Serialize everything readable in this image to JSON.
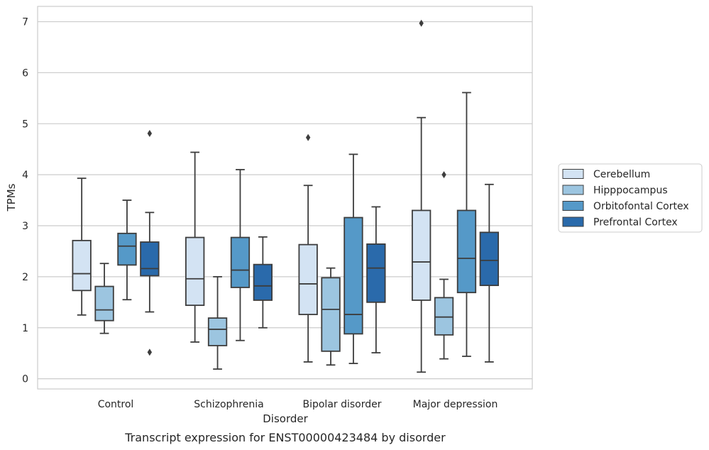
{
  "caption": "Transcript expression for ENST00000423484 by disorder",
  "chart_data": {
    "type": "box",
    "title": "",
    "xlabel": "Disorder",
    "ylabel": "TPMs",
    "ylim": [
      -0.2,
      7.3
    ],
    "yticks": [
      0,
      1,
      2,
      3,
      4,
      5,
      6,
      7
    ],
    "grid": "horizontal",
    "legend_position": "right",
    "categories": [
      "Control",
      "Schizophrenia",
      "Bipolar disorder",
      "Major depression"
    ],
    "series": [
      {
        "name": "Cerebellum",
        "color": "#d3e3f3",
        "boxes": [
          {
            "whislo": 1.25,
            "q1": 1.73,
            "med": 2.06,
            "q3": 2.71,
            "whishi": 3.93,
            "fliers": []
          },
          {
            "whislo": 0.72,
            "q1": 1.44,
            "med": 1.96,
            "q3": 2.77,
            "whishi": 4.44,
            "fliers": []
          },
          {
            "whislo": 0.33,
            "q1": 1.26,
            "med": 1.86,
            "q3": 2.63,
            "whishi": 3.79,
            "fliers": [
              4.73
            ]
          },
          {
            "whislo": 0.13,
            "q1": 1.54,
            "med": 2.29,
            "q3": 3.3,
            "whishi": 5.12,
            "fliers": [
              6.97
            ]
          }
        ]
      },
      {
        "name": "Hipppocampus",
        "color": "#9cc5e0",
        "boxes": [
          {
            "whislo": 0.89,
            "q1": 1.14,
            "med": 1.35,
            "q3": 1.81,
            "whishi": 2.26,
            "fliers": []
          },
          {
            "whislo": 0.19,
            "q1": 0.65,
            "med": 0.97,
            "q3": 1.19,
            "whishi": 2.0,
            "fliers": []
          },
          {
            "whislo": 0.27,
            "q1": 0.54,
            "med": 1.36,
            "q3": 1.98,
            "whishi": 2.17,
            "fliers": []
          },
          {
            "whislo": 0.39,
            "q1": 0.86,
            "med": 1.21,
            "q3": 1.59,
            "whishi": 1.95,
            "fliers": [
              4.0
            ]
          }
        ]
      },
      {
        "name": "Orbitofontal Cortex",
        "color": "#5599c8",
        "boxes": [
          {
            "whislo": 1.55,
            "q1": 2.23,
            "med": 2.6,
            "q3": 2.85,
            "whishi": 3.5,
            "fliers": []
          },
          {
            "whislo": 0.75,
            "q1": 1.79,
            "med": 2.13,
            "q3": 2.77,
            "whishi": 4.1,
            "fliers": []
          },
          {
            "whislo": 0.3,
            "q1": 0.88,
            "med": 1.26,
            "q3": 3.16,
            "whishi": 4.4,
            "fliers": []
          },
          {
            "whislo": 0.44,
            "q1": 1.69,
            "med": 2.36,
            "q3": 3.3,
            "whishi": 5.61,
            "fliers": []
          }
        ]
      },
      {
        "name": "Prefrontal Cortex",
        "color": "#2a6aab",
        "boxes": [
          {
            "whislo": 1.31,
            "q1": 2.02,
            "med": 2.16,
            "q3": 2.68,
            "whishi": 3.26,
            "fliers": [
              4.81,
              0.52
            ]
          },
          {
            "whislo": 1.0,
            "q1": 1.54,
            "med": 1.82,
            "q3": 2.24,
            "whishi": 2.78,
            "fliers": []
          },
          {
            "whislo": 0.51,
            "q1": 1.5,
            "med": 2.17,
            "q3": 2.64,
            "whishi": 3.37,
            "fliers": []
          },
          {
            "whislo": 0.33,
            "q1": 1.83,
            "med": 2.32,
            "q3": 2.87,
            "whishi": 3.81,
            "fliers": []
          }
        ]
      }
    ]
  }
}
